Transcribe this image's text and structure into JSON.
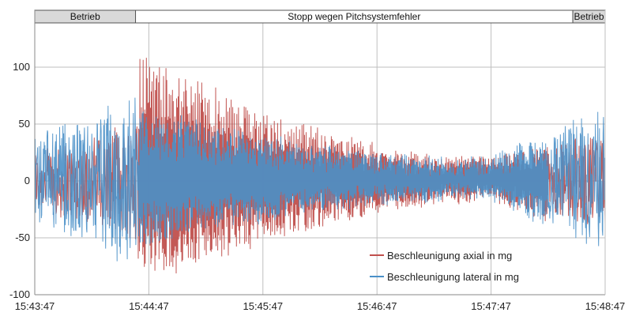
{
  "chart_data": {
    "type": "line",
    "title": "",
    "xlabel": "",
    "ylabel": "",
    "x_range": [
      "15:43:47",
      "15:48:47"
    ],
    "xticks": [
      "15:43:47",
      "15:44:47",
      "15:45:47",
      "15:46:47",
      "15:47:47",
      "15:48:47"
    ],
    "ylim": [
      -100,
      150
    ],
    "yticks": [
      -100,
      -50,
      0,
      50,
      100
    ],
    "grid": true,
    "legend_position": "bottom-right",
    "state_bands": [
      {
        "label": "Betrieb",
        "start": "15:43:47",
        "end": "15:44:40"
      },
      {
        "label": "Stopp wegen Pitchsystemfehler",
        "start": "15:44:40",
        "end": "15:48:30"
      },
      {
        "label": "Betrieb",
        "start": "15:48:30",
        "end": "15:48:47"
      }
    ],
    "series": [
      {
        "name": "Beschleunigung axial in mg",
        "color": "#c0504d",
        "envelope_seconds": [
          0,
          30,
          50,
          53,
          56,
          60,
          75,
          90,
          120,
          150,
          180,
          210,
          240,
          270,
          285,
          300
        ],
        "envelope_max": [
          30,
          40,
          60,
          70,
          130,
          110,
          95,
          85,
          60,
          45,
          30,
          20,
          20,
          28,
          40,
          45
        ],
        "envelope_min": [
          -30,
          -40,
          -55,
          -65,
          -90,
          -85,
          -80,
          -72,
          -55,
          -40,
          -28,
          -18,
          -15,
          -35,
          -45,
          -40
        ]
      },
      {
        "name": "Beschleunigung lateral in mg",
        "color": "#4a90c8",
        "envelope_seconds": [
          0,
          30,
          50,
          53,
          56,
          60,
          75,
          90,
          120,
          150,
          180,
          210,
          240,
          270,
          285,
          300
        ],
        "envelope_max": [
          45,
          60,
          90,
          80,
          70,
          60,
          55,
          50,
          40,
          30,
          25,
          20,
          20,
          40,
          75,
          70
        ],
        "envelope_min": [
          -45,
          -60,
          -75,
          -70,
          -60,
          -55,
          -48,
          -42,
          -35,
          -25,
          -20,
          -15,
          -15,
          -40,
          -55,
          -50
        ]
      }
    ]
  }
}
